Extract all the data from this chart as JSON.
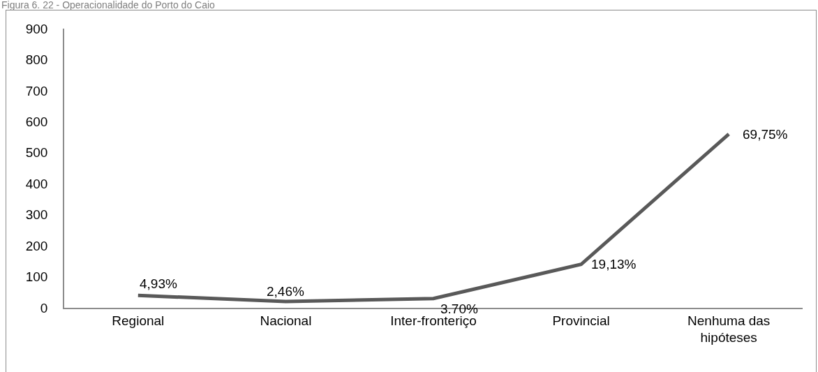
{
  "chart_data": {
    "type": "line",
    "title": "Figura 6. 22 - Operacionalidade do Porto do Caio",
    "categories": [
      "Regional",
      "Nacional",
      "Inter-fronteriço",
      "Provincial",
      "Nenhuma das hipóteses"
    ],
    "series": [
      {
        "color": "#595959",
        "values": [
          40,
          20,
          30,
          140,
          560
        ]
      }
    ],
    "annotations": [
      {
        "text": "4,93%",
        "x": "Regional",
        "y": 40
      },
      {
        "text": "2,46%",
        "x": "Nacional",
        "y": 20
      },
      {
        "text": "3.70%",
        "x": "Inter-fronteriço",
        "y": 30
      },
      {
        "text": "19,13%",
        "x": "Provincial",
        "y": 140
      },
      {
        "text": "69,75%",
        "x": "Nenhuma das hipóteses",
        "y": 560
      }
    ],
    "ylim": [
      0,
      900
    ],
    "yticks": [
      0,
      100,
      200,
      300,
      400,
      500,
      600,
      700,
      800,
      900
    ],
    "grid": false,
    "marker": "none",
    "line_style": "solid"
  }
}
